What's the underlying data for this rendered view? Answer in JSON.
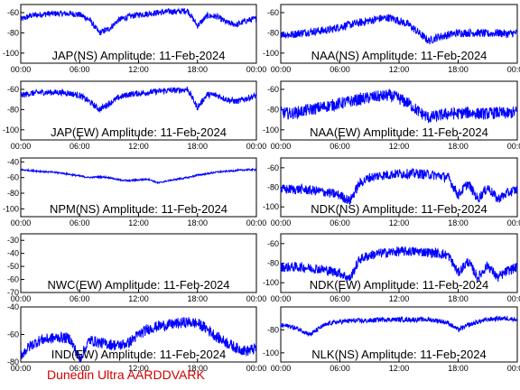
{
  "credit": "Dunedin Ultra AARDDVARK",
  "chart_data": [
    {
      "type": "line",
      "title": "JAP(NS) Amplitude: 11-Feb-2024",
      "x_ticks": [
        "00:00",
        "06:00",
        "12:00",
        "18:00",
        "00:00"
      ],
      "y_ticks": [
        "-60",
        "-80",
        "-100"
      ],
      "ylim": [
        -110,
        -52
      ],
      "x": [
        0,
        1,
        2,
        3,
        4,
        5,
        6,
        7,
        8,
        9,
        10,
        11,
        12,
        13,
        14,
        15,
        16,
        17,
        18,
        19,
        20,
        21,
        22,
        23,
        24
      ],
      "series": [
        {
          "values": [
            -67,
            -63,
            -62,
            -61,
            -61,
            -61,
            -62,
            -67,
            -80,
            -76,
            -67,
            -64,
            -62,
            -61,
            -60,
            -59,
            -59,
            -58,
            -73,
            -63,
            -64,
            -70,
            -72,
            -68,
            -66
          ],
          "spread": 3,
          "color": "#0000ff"
        }
      ]
    },
    {
      "type": "line",
      "title": "NAA(NS) Amplitude: 11-Feb-2024",
      "x_ticks": [
        "00:00",
        "06:00",
        "12:00",
        "18:00",
        "00:00"
      ],
      "y_ticks": [
        "-60",
        "-80",
        "-100"
      ],
      "ylim": [
        -110,
        -52
      ],
      "x": [
        0,
        1,
        2,
        3,
        4,
        5,
        6,
        7,
        8,
        9,
        10,
        11,
        12,
        13,
        14,
        15,
        16,
        17,
        18,
        19,
        20,
        21,
        22,
        23,
        24
      ],
      "series": [
        {
          "values": [
            -81,
            -82,
            -80,
            -79,
            -78,
            -77,
            -74,
            -72,
            -70,
            -68,
            -66,
            -65,
            -68,
            -72,
            -80,
            -88,
            -84,
            -82,
            -80,
            -80,
            -80,
            -81,
            -80,
            -81,
            -80
          ],
          "spread": 4,
          "color": "#0000ff"
        }
      ]
    },
    {
      "type": "line",
      "title": "JAP(EW) Amplitude: 11-Feb-2024",
      "x_ticks": [
        "00:00",
        "06:00",
        "12:00",
        "18:00",
        "00:00"
      ],
      "y_ticks": [
        "-60",
        "-80",
        "-100"
      ],
      "ylim": [
        -110,
        -52
      ],
      "x": [
        0,
        1,
        2,
        3,
        4,
        5,
        6,
        7,
        8,
        9,
        10,
        11,
        12,
        13,
        14,
        15,
        16,
        17,
        18,
        19,
        20,
        21,
        22,
        23,
        24
      ],
      "series": [
        {
          "values": [
            -66,
            -64,
            -63,
            -63,
            -63,
            -64,
            -66,
            -72,
            -80,
            -74,
            -68,
            -65,
            -64,
            -63,
            -62,
            -61,
            -61,
            -60,
            -78,
            -65,
            -66,
            -70,
            -72,
            -69,
            -66
          ],
          "spread": 3,
          "color": "#0000ff"
        }
      ]
    },
    {
      "type": "line",
      "title": "NAA(EW) Amplitude: 11-Feb-2024",
      "x_ticks": [
        "00:00",
        "06:00",
        "12:00",
        "18:00",
        "00:00"
      ],
      "y_ticks": [
        "-60",
        "-80",
        "-100"
      ],
      "ylim": [
        -110,
        -52
      ],
      "x": [
        0,
        1,
        2,
        3,
        4,
        5,
        6,
        7,
        8,
        9,
        10,
        11,
        12,
        13,
        14,
        15,
        16,
        17,
        18,
        19,
        20,
        21,
        22,
        23,
        24
      ],
      "series": [
        {
          "values": [
            -83,
            -84,
            -82,
            -80,
            -78,
            -76,
            -74,
            -72,
            -70,
            -68,
            -67,
            -66,
            -69,
            -74,
            -82,
            -88,
            -86,
            -84,
            -84,
            -83,
            -84,
            -84,
            -83,
            -84,
            -82
          ],
          "spread": 6,
          "color": "#0000ff"
        }
      ]
    },
    {
      "type": "line",
      "title": "NPM(NS) Amplitude: 11-Feb-2024",
      "x_ticks": [
        "00:00",
        "06:00",
        "12:00",
        "18:00",
        "00:00"
      ],
      "y_ticks": [
        "-40",
        "-60",
        "-80",
        "-100"
      ],
      "ylim": [
        -110,
        -35
      ],
      "x": [
        0,
        1,
        2,
        3,
        4,
        5,
        6,
        7,
        8,
        9,
        10,
        11,
        12,
        13,
        14,
        15,
        16,
        17,
        18,
        19,
        20,
        21,
        22,
        23,
        24
      ],
      "series": [
        {
          "values": [
            -50,
            -51,
            -52,
            -53,
            -54,
            -56,
            -58,
            -60,
            -59,
            -60,
            -63,
            -64,
            -63,
            -62,
            -67,
            -64,
            -62,
            -60,
            -57,
            -55,
            -53,
            -52,
            -51,
            -50,
            -50
          ],
          "spread": 1,
          "color": "#0000ff"
        }
      ]
    },
    {
      "type": "line",
      "title": "NDK(NS) Amplitude: 11-Feb-2024",
      "x_ticks": [
        "00:00",
        "06:00",
        "12:00",
        "18:00",
        "00:00"
      ],
      "y_ticks": [
        "-60",
        "-80",
        "-100"
      ],
      "ylim": [
        -110,
        -50
      ],
      "x": [
        0,
        1,
        2,
        3,
        4,
        5,
        6,
        7,
        8,
        9,
        10,
        11,
        12,
        13,
        14,
        15,
        16,
        17,
        18,
        19,
        20,
        21,
        22,
        23,
        24
      ],
      "series": [
        {
          "values": [
            -82,
            -82,
            -82,
            -83,
            -84,
            -86,
            -88,
            -94,
            -76,
            -70,
            -68,
            -67,
            -66,
            -66,
            -66,
            -67,
            -68,
            -70,
            -88,
            -76,
            -92,
            -80,
            -92,
            -86,
            -82
          ],
          "spread": 5,
          "color": "#0000ff"
        }
      ]
    },
    {
      "type": "line",
      "title": "NWC(EW) Amplitude: 11-Feb-2024",
      "x_ticks": [
        "00:00",
        "06:00",
        "12:00",
        "18:00",
        "00:00"
      ],
      "y_ticks": [
        "-30",
        "-40",
        "-50",
        "-60",
        "-70"
      ],
      "ylim": [
        -70,
        -25
      ],
      "x": [],
      "series": []
    },
    {
      "type": "line",
      "title": "NDK(EW) Amplitude: 11-Feb-2024",
      "x_ticks": [
        "00:00",
        "06:00",
        "12:00",
        "18:00",
        "00:00"
      ],
      "y_ticks": [
        "-60",
        "-80",
        "-100"
      ],
      "ylim": [
        -110,
        -50
      ],
      "x": [
        0,
        1,
        2,
        3,
        4,
        5,
        6,
        7,
        8,
        9,
        10,
        11,
        12,
        13,
        14,
        15,
        16,
        17,
        18,
        19,
        20,
        21,
        22,
        23,
        24
      ],
      "series": [
        {
          "values": [
            -84,
            -84,
            -84,
            -85,
            -86,
            -88,
            -90,
            -96,
            -76,
            -72,
            -70,
            -69,
            -68,
            -68,
            -68,
            -69,
            -70,
            -72,
            -90,
            -78,
            -95,
            -82,
            -95,
            -88,
            -84
          ],
          "spread": 5,
          "color": "#0000ff"
        }
      ]
    },
    {
      "type": "line",
      "title": "IND(EW) Amplitude: 11-Feb-2024",
      "x_ticks": [
        "00:00",
        "06:00",
        "12:00",
        "18:00",
        "00:00"
      ],
      "y_ticks": [
        "-40",
        "-60",
        "-80"
      ],
      "ylim": [
        -80,
        -40
      ],
      "x": [
        0,
        1,
        2,
        3,
        4,
        5,
        6,
        7,
        8,
        9,
        10,
        11,
        12,
        13,
        14,
        15,
        16,
        17,
        18,
        19,
        20,
        21,
        22,
        23,
        24
      ],
      "series": [
        {
          "values": [
            -75,
            -68,
            -64,
            -63,
            -62,
            -63,
            -78,
            -64,
            -66,
            -67,
            -68,
            -66,
            -60,
            -56,
            -54,
            -53,
            -52,
            -51,
            -52,
            -56,
            -62,
            -66,
            -70,
            -72,
            -70
          ],
          "spread": 4,
          "color": "#0000ff"
        }
      ]
    },
    {
      "type": "line",
      "title": "NLK(NS) Amplitude: 11-Feb-2024",
      "x_ticks": [
        "00:00",
        "06:00",
        "12:00",
        "18:00",
        "00:00"
      ],
      "y_ticks": [
        "-80",
        "-100"
      ],
      "ylim": [
        -108,
        -60
      ],
      "x": [
        0,
        1,
        2,
        3,
        4,
        5,
        6,
        7,
        8,
        9,
        10,
        11,
        12,
        13,
        14,
        15,
        16,
        17,
        18,
        19,
        20,
        21,
        22,
        23,
        24
      ],
      "series": [
        {
          "values": [
            -76,
            -77,
            -80,
            -84,
            -78,
            -74,
            -73,
            -72,
            -72,
            -72,
            -71,
            -71,
            -71,
            -71,
            -71,
            -71,
            -72,
            -74,
            -80,
            -76,
            -73,
            -71,
            -70,
            -70,
            -71
          ],
          "spread": 2,
          "color": "#0000ff"
        }
      ]
    }
  ]
}
